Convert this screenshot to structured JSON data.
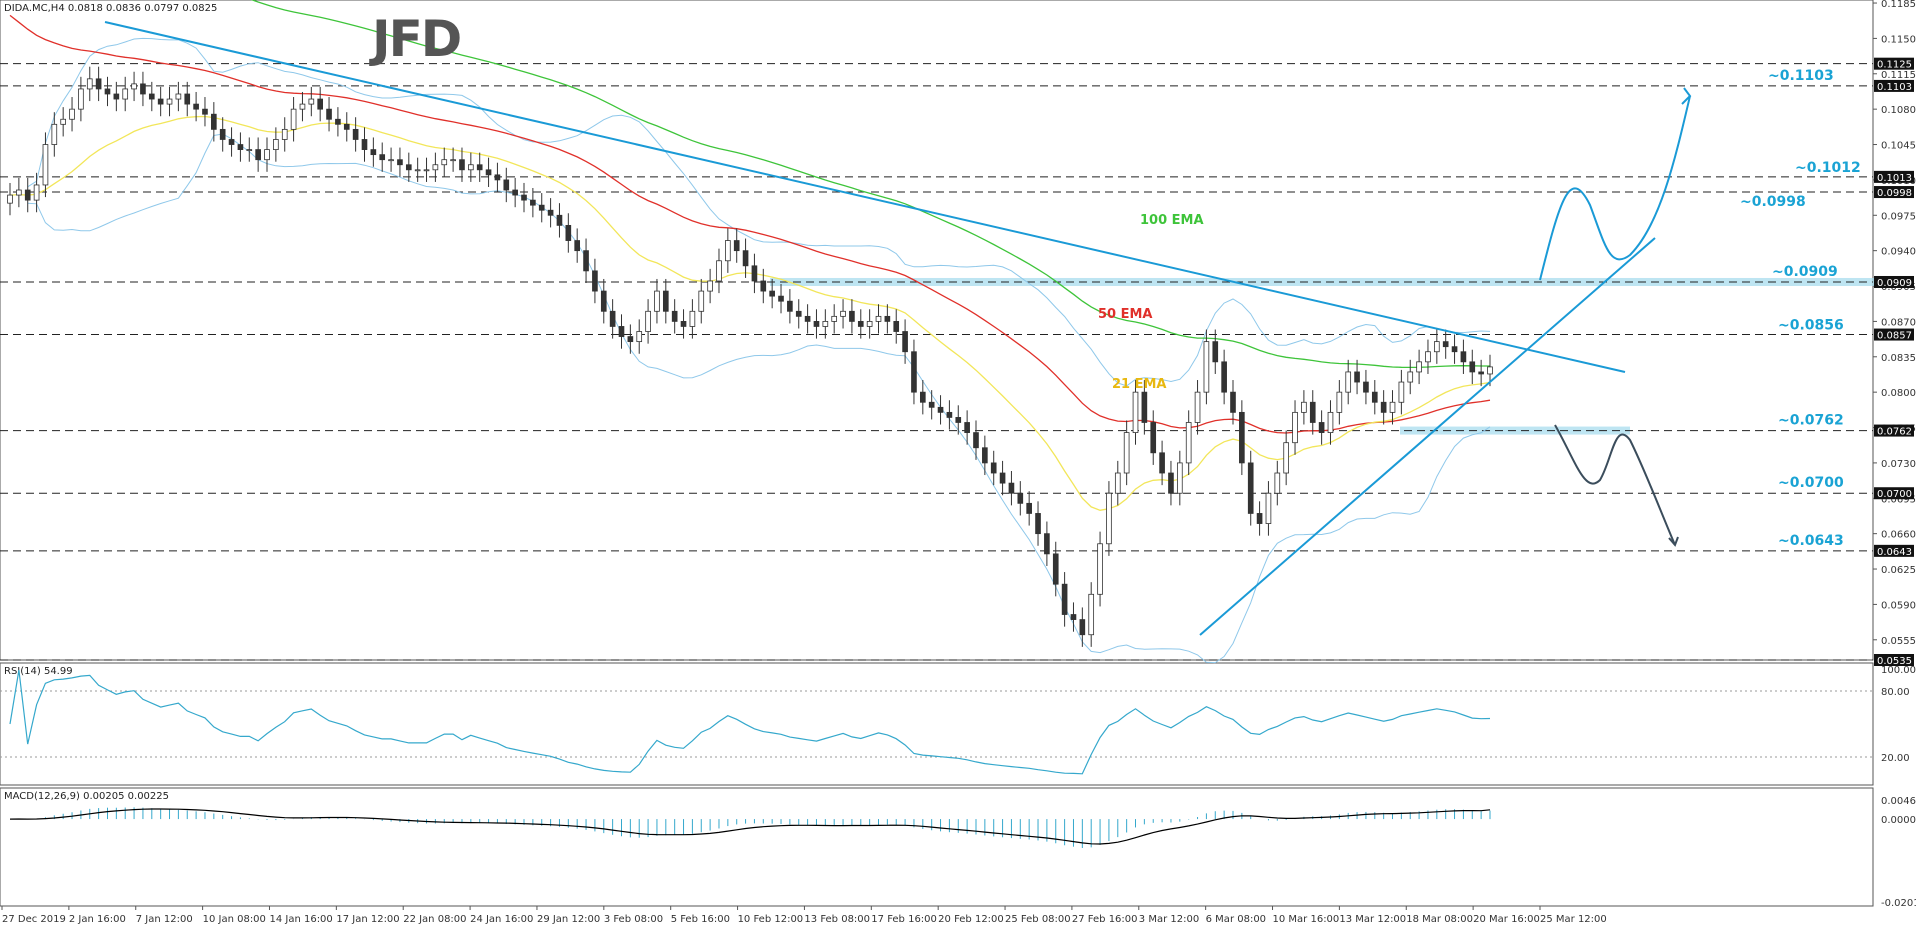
{
  "header": {
    "main_info": "DIDA.MC,H4  0.0818 0.0836 0.0797 0.0825",
    "rsi_info": "RSI(14) 54.99",
    "macd_info": "MACD(12,26,9) 0.00205 0.00225"
  },
  "logo_text": "JFD",
  "colors": {
    "ema21": "#f2e65a",
    "ema50": "#e0302a",
    "ema100": "#3ec43a",
    "bollinger": "#8fc8ea",
    "trendline": "#1a9ad6",
    "level": "#1aa3d4",
    "zone": "#a8dcee",
    "candle_up": "#ffffff",
    "candle_down": "#333333",
    "rsi_line": "#35a8cc",
    "macd_hist": "#35a8cc",
    "macd_signal": "#000000",
    "bearish_arrow": "#3b4d5c"
  },
  "chart_data": {
    "type": "candlestick",
    "symbol": "DIDA.MC",
    "timeframe": "H4",
    "ohlc_last": {
      "open": 0.0818,
      "high": 0.0836,
      "low": 0.0797,
      "close": 0.0825
    },
    "x_labels": [
      "27 Dec 2019",
      "2 Jan 16:00",
      "7 Jan 12:00",
      "10 Jan 08:00",
      "14 Jan 16:00",
      "17 Jan 12:00",
      "22 Jan 08:00",
      "24 Jan 16:00",
      "29 Jan 12:00",
      "3 Feb 08:00",
      "5 Feb 16:00",
      "10 Feb 12:00",
      "13 Feb 08:00",
      "17 Feb 16:00",
      "20 Feb 12:00",
      "25 Feb 08:00",
      "27 Feb 16:00",
      "3 Mar 12:00",
      "6 Mar 08:00",
      "10 Mar 16:00",
      "13 Mar 12:00",
      "18 Mar 08:00",
      "20 Mar 16:00",
      "25 Mar 12:00"
    ],
    "y_range": [
      0.0535,
      0.1188
    ],
    "y_ticks": [
      "0.1185",
      "0.1150",
      "0.1115",
      "0.1080",
      "0.1045",
      "0.1010",
      "0.0975",
      "0.0940",
      "0.0905",
      "0.0870",
      "0.0835",
      "0.0800",
      "0.0765",
      "0.0730",
      "0.0695",
      "0.0660",
      "0.0625",
      "0.0590",
      "0.0555"
    ],
    "price_tags": [
      "0.1125",
      "0.1103",
      "0.1013",
      "0.0998",
      "0.0909",
      "0.0857",
      "0.0762",
      "0.0700",
      "0.0643",
      "0.0535"
    ],
    "level_labels": [
      "~0.1103",
      "~0.1012",
      "~0.0998",
      "~0.0909",
      "~0.0856",
      "~0.0762",
      "~0.0700",
      "~0.0643"
    ],
    "ma_labels": [
      "100 EMA",
      "50 EMA",
      "21 EMA"
    ],
    "closes": [
      0.0995,
      0.1,
      0.099,
      0.1005,
      0.1045,
      0.1065,
      0.107,
      0.108,
      0.11,
      0.111,
      0.11,
      0.1095,
      0.109,
      0.11,
      0.1105,
      0.1095,
      0.109,
      0.1085,
      0.109,
      0.1095,
      0.1085,
      0.108,
      0.1075,
      0.106,
      0.105,
      0.1045,
      0.104,
      0.104,
      0.103,
      0.104,
      0.105,
      0.106,
      0.108,
      0.1085,
      0.109,
      0.108,
      0.107,
      0.1065,
      0.106,
      0.105,
      0.104,
      0.1035,
      0.103,
      0.103,
      0.1025,
      0.102,
      0.102,
      0.102,
      0.1025,
      0.103,
      0.103,
      0.102,
      0.1025,
      0.102,
      0.1015,
      0.101,
      0.1,
      0.0995,
      0.099,
      0.0985,
      0.098,
      0.0975,
      0.0965,
      0.095,
      0.094,
      0.092,
      0.09,
      0.088,
      0.0865,
      0.0855,
      0.085,
      0.086,
      0.088,
      0.09,
      0.088,
      0.087,
      0.0865,
      0.088,
      0.09,
      0.091,
      0.093,
      0.095,
      0.094,
      0.0925,
      0.091,
      0.09,
      0.0895,
      0.089,
      0.088,
      0.0875,
      0.087,
      0.0865,
      0.087,
      0.0875,
      0.088,
      0.087,
      0.0865,
      0.087,
      0.0875,
      0.087,
      0.086,
      0.084,
      0.08,
      0.079,
      0.0785,
      0.078,
      0.0775,
      0.077,
      0.076,
      0.0745,
      0.073,
      0.072,
      0.071,
      0.07,
      0.069,
      0.068,
      0.066,
      0.064,
      0.061,
      0.058,
      0.0575,
      0.056,
      0.06,
      0.065,
      0.07,
      0.072,
      0.076,
      0.08,
      0.077,
      0.074,
      0.072,
      0.07,
      0.073,
      0.077,
      0.08,
      0.085,
      0.083,
      0.08,
      0.078,
      0.073,
      0.068,
      0.067,
      0.07,
      0.072,
      0.075,
      0.078,
      0.079,
      0.077,
      0.076,
      0.078,
      0.08,
      0.082,
      0.081,
      0.08,
      0.079,
      0.078,
      0.079,
      0.081,
      0.082,
      0.083,
      0.084,
      0.085,
      0.0845,
      0.084,
      0.083,
      0.082,
      0.0818,
      0.0825
    ]
  },
  "rsi": {
    "levels": [
      "100.00",
      "80.00",
      "20.00",
      "0.00"
    ],
    "last": 54.99
  },
  "macd": {
    "labels": [
      "0.00463",
      "0.00000",
      "-0.02013"
    ],
    "main": 0.00205,
    "signal": 0.00225
  }
}
